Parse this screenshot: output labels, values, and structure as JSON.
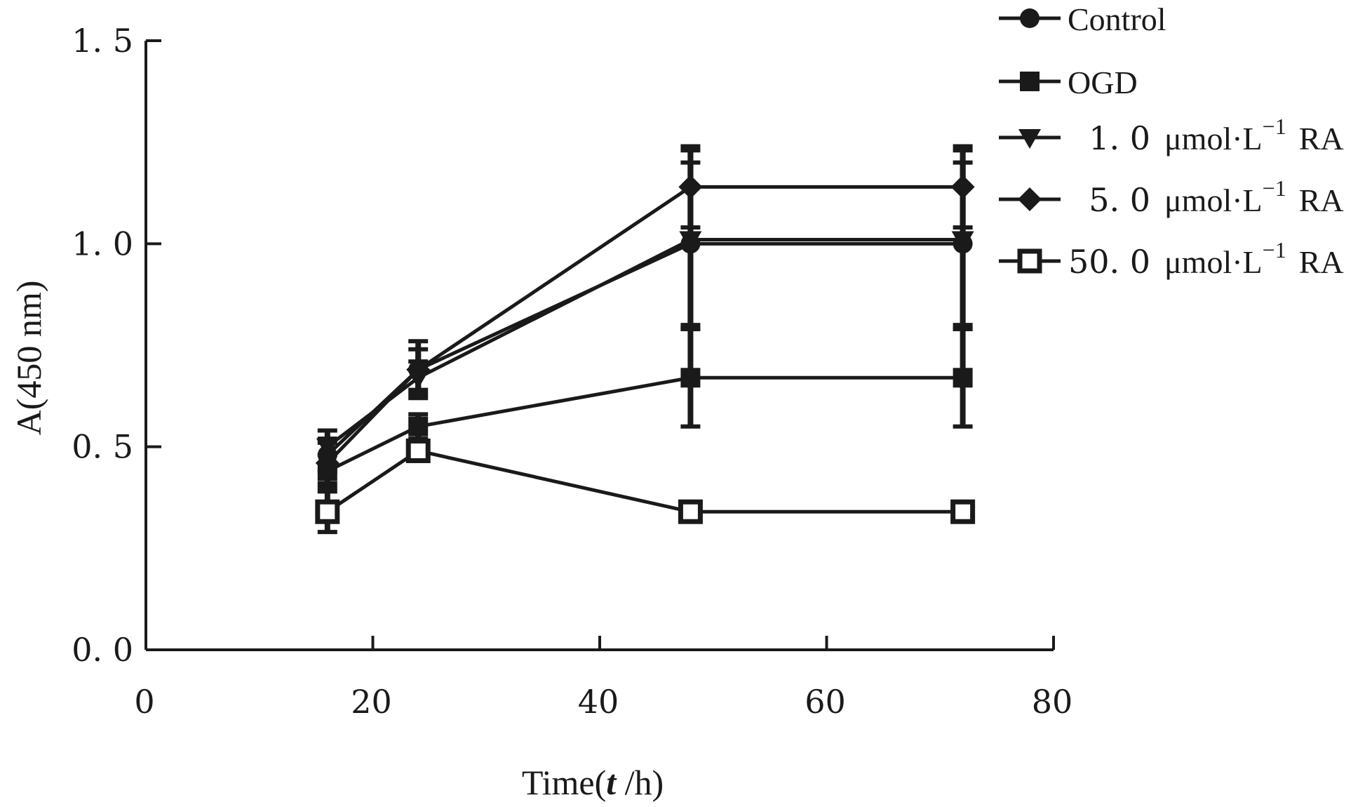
{
  "chart_data": {
    "type": "line",
    "xlabel": "Time(t /h)",
    "xlabel_parts": {
      "prefix": "Time(",
      "var": "t",
      "suffix": " /h)"
    },
    "ylabel": "A(450 nm)",
    "xlim": [
      0,
      80
    ],
    "ylim": [
      0,
      1.5
    ],
    "x_ticks": [
      0,
      20,
      40,
      60,
      80
    ],
    "x_tick_labels": [
      "0",
      "20",
      "40",
      "60",
      "80"
    ],
    "y_ticks": [
      0,
      0.5,
      1.0,
      1.5
    ],
    "y_tick_labels": [
      "0. 0",
      "0. 5",
      "1. 0",
      "1. 5"
    ],
    "grid": false,
    "legend_position": "top-right",
    "x": [
      16,
      24,
      48,
      72
    ],
    "series": [
      {
        "name": "Control",
        "legend_parts": {
          "num": "",
          "unit": "Control",
          "sup": "",
          "suffix": ""
        },
        "marker": "circle",
        "values": [
          0.48,
          0.69,
          1.0,
          1.0
        ],
        "errors": [
          0.04,
          0.05,
          0.2,
          0.2
        ]
      },
      {
        "name": "OGD",
        "legend_parts": {
          "num": "",
          "unit": "OGD",
          "sup": "",
          "suffix": ""
        },
        "marker": "square",
        "values": [
          0.44,
          0.55,
          0.67,
          0.67
        ],
        "errors": [
          0.04,
          0.03,
          0.12,
          0.12
        ]
      },
      {
        "name": "1. 0 μmol·L−1 RA",
        "legend_parts": {
          "num": "1. 0",
          "unit": "μmol·L",
          "sup": "−1",
          "suffix": "RA"
        },
        "marker": "triangle-down",
        "values": [
          0.5,
          0.67,
          1.01,
          1.01
        ],
        "errors": [
          0.04,
          0.04,
          0.22,
          0.22
        ]
      },
      {
        "name": "5. 0 μmol·L−1 RA",
        "legend_parts": {
          "num": "5. 0",
          "unit": "μmol·L",
          "sup": "−1",
          "suffix": "RA"
        },
        "marker": "diamond",
        "values": [
          0.46,
          0.69,
          1.14,
          1.14
        ],
        "errors": [
          0.05,
          0.07,
          0.1,
          0.1
        ]
      },
      {
        "name": "50. 0 μmol·L−1 RA",
        "legend_parts": {
          "num": "50. 0",
          "unit": "μmol·L",
          "sup": "−1",
          "suffix": "RA"
        },
        "marker": "open-square",
        "values": [
          0.34,
          0.49,
          0.34,
          0.34
        ],
        "errors": [
          0.05,
          0.02,
          0.01,
          0.01
        ]
      }
    ],
    "colors": {
      "ink": "#1a1a1a",
      "background": "#ffffff"
    }
  }
}
